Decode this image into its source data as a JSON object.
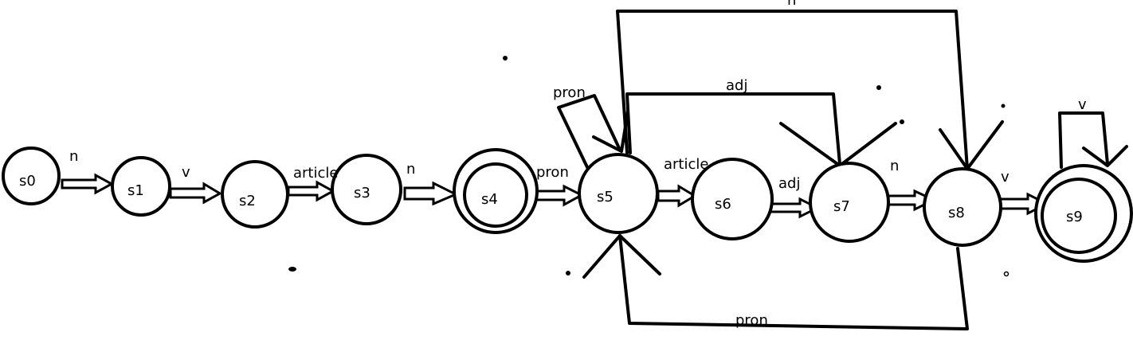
{
  "states": [
    {
      "id": "s0",
      "label": "s0",
      "accepting": false
    },
    {
      "id": "s1",
      "label": "s1",
      "accepting": false
    },
    {
      "id": "s2",
      "label": "s2",
      "accepting": false
    },
    {
      "id": "s3",
      "label": "s3",
      "accepting": false
    },
    {
      "id": "s4",
      "label": "s4",
      "accepting": true
    },
    {
      "id": "s5",
      "label": "s5",
      "accepting": false
    },
    {
      "id": "s6",
      "label": "s6",
      "accepting": false
    },
    {
      "id": "s7",
      "label": "s7",
      "accepting": false
    },
    {
      "id": "s8",
      "label": "s8",
      "accepting": false
    },
    {
      "id": "s9",
      "label": "s9",
      "accepting": true
    }
  ],
  "transitions": [
    {
      "from": "s0",
      "to": "s1",
      "label": "n"
    },
    {
      "from": "s1",
      "to": "s2",
      "label": "v"
    },
    {
      "from": "s2",
      "to": "s3",
      "label": "article"
    },
    {
      "from": "s3",
      "to": "s4",
      "label": "n"
    },
    {
      "from": "s4",
      "to": "s5",
      "label": "pron"
    },
    {
      "from": "s5",
      "to": "s5",
      "label": "pron"
    },
    {
      "from": "s5",
      "to": "s6",
      "label": "article"
    },
    {
      "from": "s6",
      "to": "s7",
      "label": "adj"
    },
    {
      "from": "s5",
      "to": "s7",
      "label": "adj"
    },
    {
      "from": "s7",
      "to": "s8",
      "label": "n"
    },
    {
      "from": "s5",
      "to": "s8",
      "label": "n"
    },
    {
      "from": "s8",
      "to": "s5",
      "label": "pron"
    },
    {
      "from": "s8",
      "to": "s9",
      "label": "v"
    },
    {
      "from": "s9",
      "to": "s9",
      "label": "v"
    }
  ]
}
